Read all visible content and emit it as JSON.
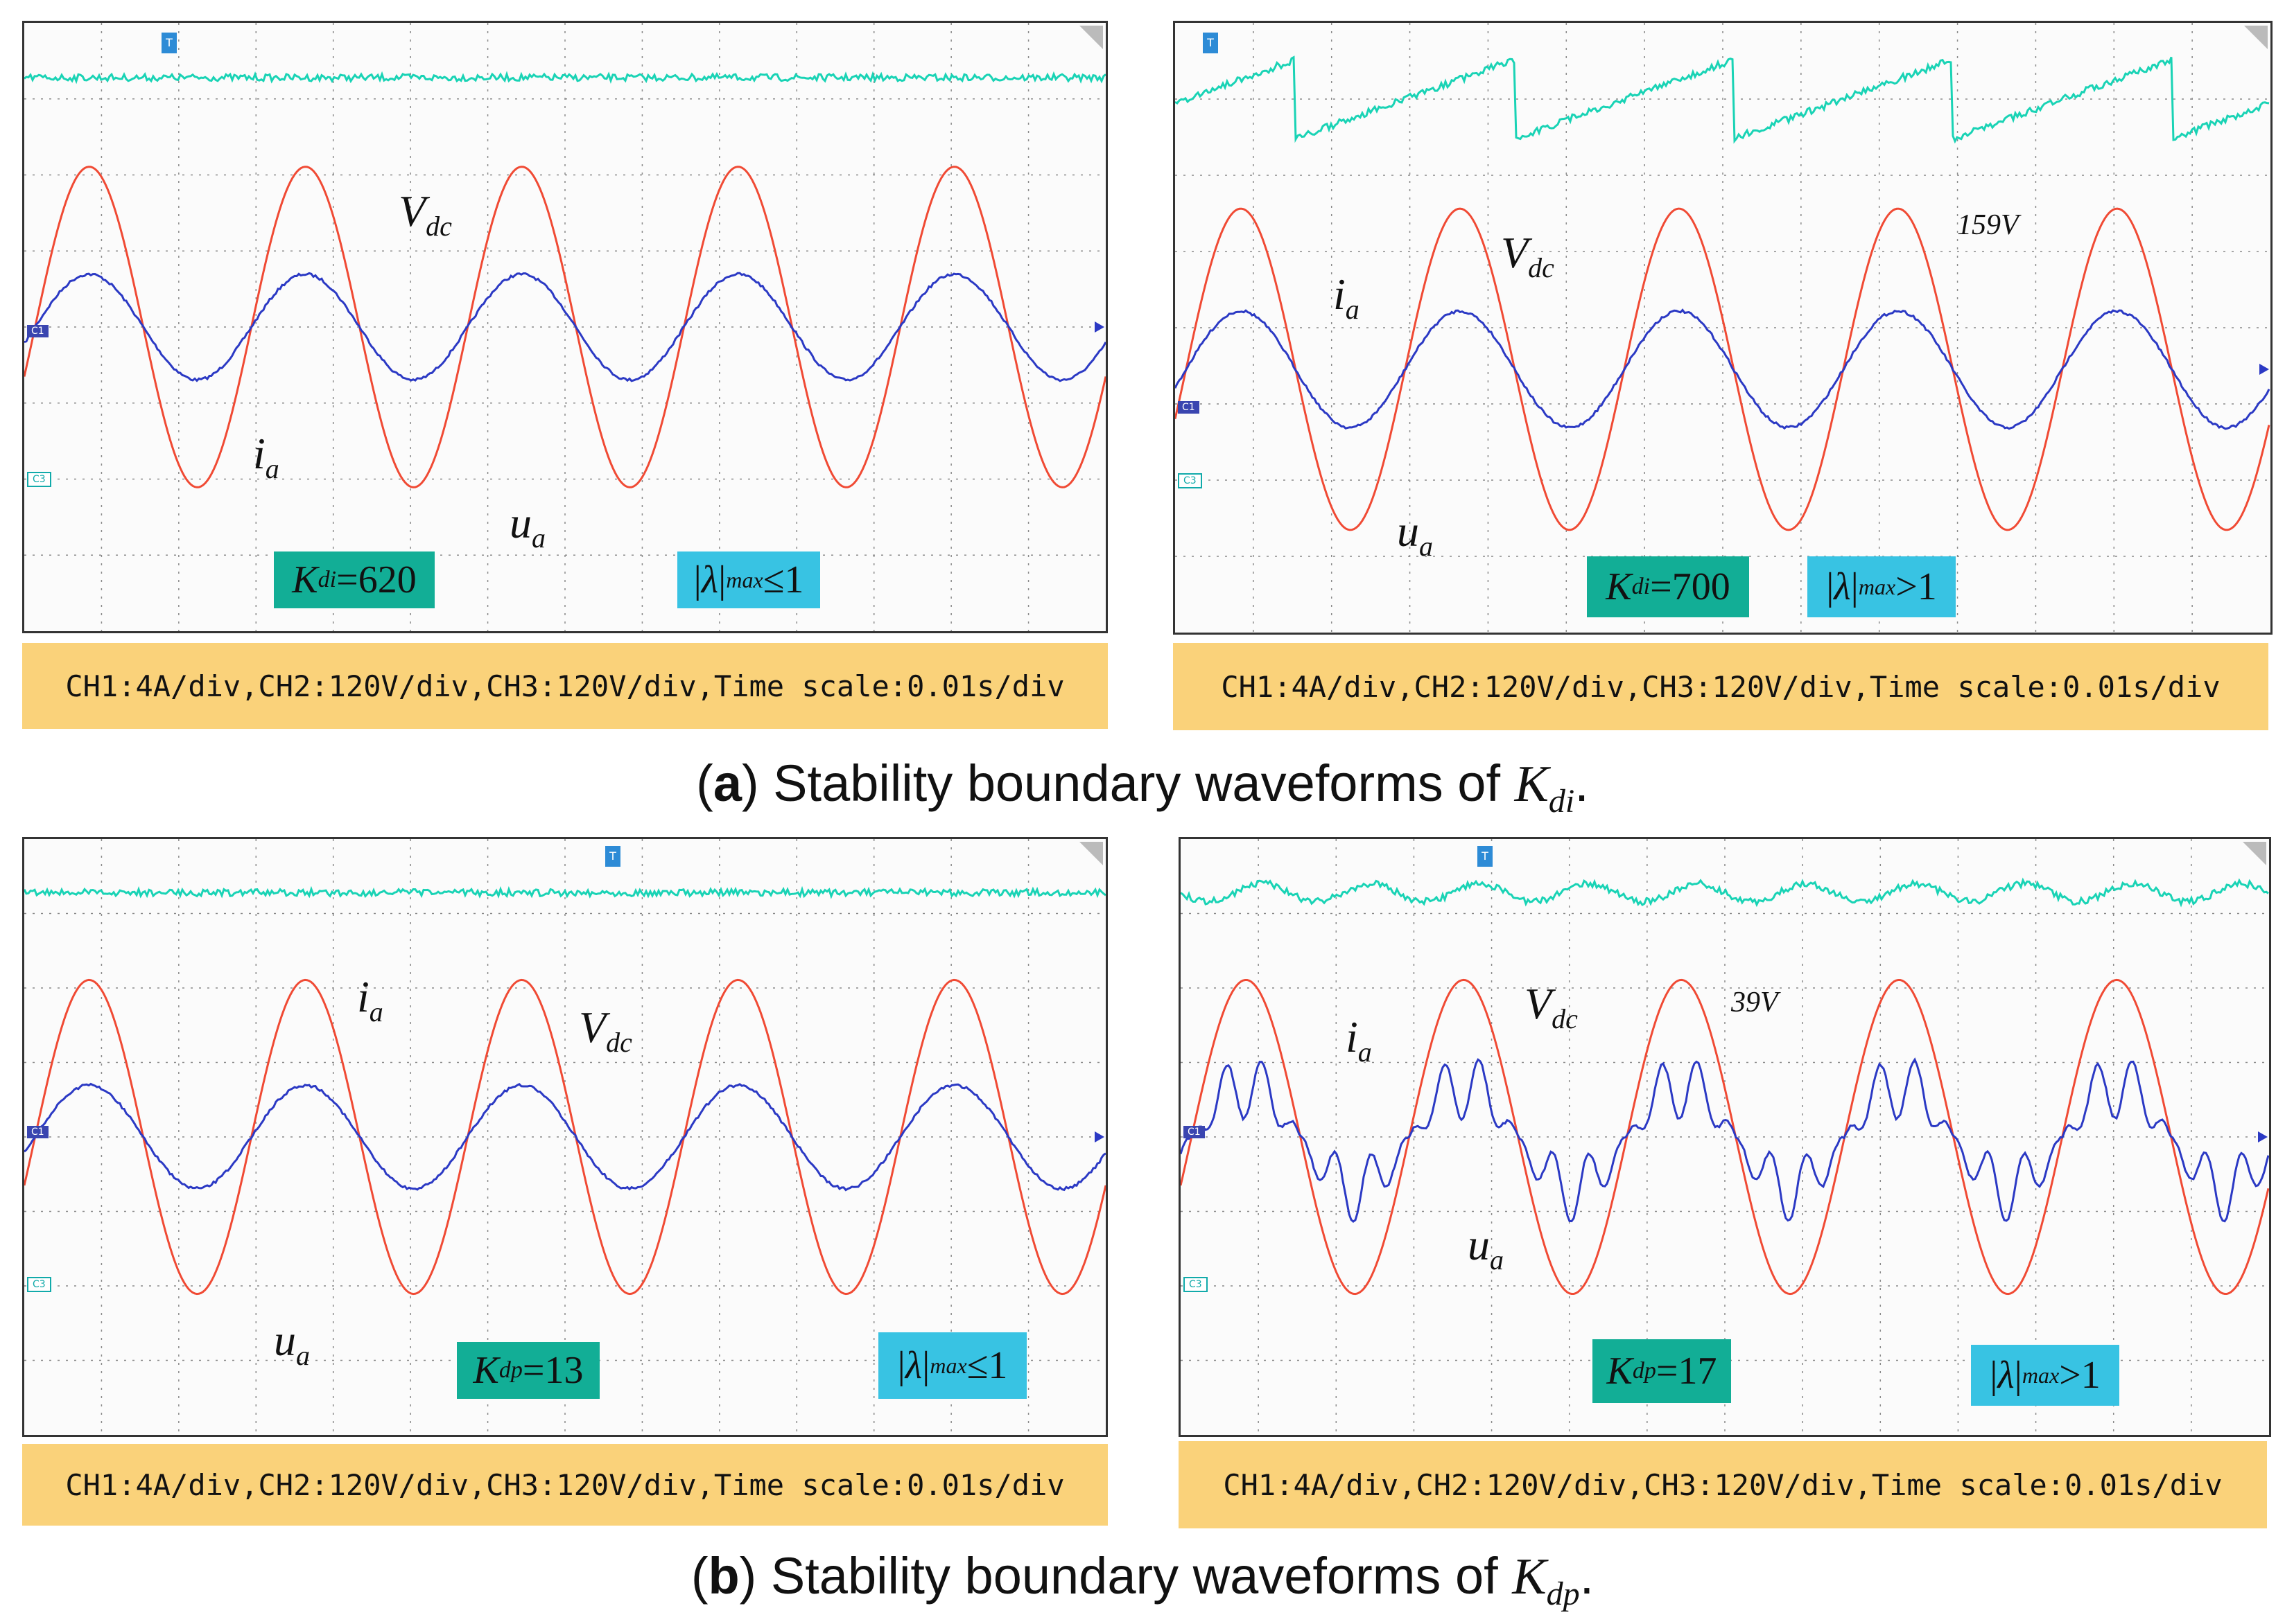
{
  "figure": {
    "caption_a": {
      "label": "a",
      "text": "Stability boundary waveforms of ",
      "sym": "K",
      "sub": "di"
    },
    "caption_b": {
      "label": "b",
      "text": "Stability boundary waveforms of ",
      "sym": "K",
      "sub": "dp"
    }
  },
  "colors": {
    "vdc": "#19d3b5",
    "ia": "#2b39c4",
    "ua": "#f04a34",
    "grid": "#8a8a8a"
  },
  "panels": [
    {
      "id": "a-left",
      "scale_text": "CH1:4A/div,CH2:120V/div,CH3:120V/div,Time scale:0.01s/div",
      "param": {
        "sym": "K",
        "sub": "di",
        "rel": " = ",
        "val": "620"
      },
      "lambda": {
        "sub": "max",
        "rel": " ≤1"
      },
      "labels": {
        "vdc_sym": "V",
        "vdc_sub": "dc",
        "ia_sym": "i",
        "ia_sub": "a",
        "ua_sym": "u",
        "ua_sub": "a"
      },
      "annotation": "",
      "tags": {
        "c1": "C1",
        "c3": "C3"
      },
      "waves": {
        "ua_amp": 0.85,
        "ia_amp": 0.2,
        "cycles": 5,
        "vdc_mode": "flat",
        "ia_ripple": 0
      }
    },
    {
      "id": "a-right",
      "scale_text": "CH1:4A/div,CH2:120V/div,CH3:120V/div,Time scale:0.01s/div",
      "param": {
        "sym": "K",
        "sub": "di",
        "rel": " = ",
        "val": "700"
      },
      "lambda": {
        "sub": "max",
        "rel": " >1"
      },
      "labels": {
        "vdc_sym": "V",
        "vdc_sub": "dc",
        "ia_sym": "i",
        "ia_sub": "a",
        "ua_sym": "u",
        "ua_sub": "a"
      },
      "annotation": "159V",
      "tags": {
        "c1": "C1",
        "c3": "C3"
      },
      "waves": {
        "ua_amp": 0.85,
        "ia_amp": 0.22,
        "cycles": 5,
        "vdc_mode": "sawtooth",
        "ia_ripple": 0
      }
    },
    {
      "id": "b-left",
      "scale_text": "CH1:4A/div,CH2:120V/div,CH3:120V/div,Time scale:0.01s/div",
      "param": {
        "sym": "K",
        "sub": "dp",
        "rel": " =",
        "val": "13"
      },
      "lambda": {
        "sub": "max",
        "rel": " ≤1"
      },
      "labels": {
        "vdc_sym": "V",
        "vdc_sub": "dc",
        "ia_sym": "i",
        "ia_sub": "a",
        "ua_sym": "u",
        "ua_sub": "a"
      },
      "annotation": "",
      "tags": {
        "c1": "C1",
        "c3": "C3"
      },
      "waves": {
        "ua_amp": 0.85,
        "ia_amp": 0.2,
        "cycles": 5,
        "vdc_mode": "flat",
        "ia_ripple": 0
      }
    },
    {
      "id": "b-right",
      "scale_text": "CH1:4A/div,CH2:120V/div,CH3:120V/div,Time scale:0.01s/div",
      "param": {
        "sym": "K",
        "sub": "dp",
        "rel": "=",
        "val": "17"
      },
      "lambda": {
        "sub": "max",
        "rel": " >1"
      },
      "labels": {
        "vdc_sym": "V",
        "vdc_sub": "dc",
        "ia_sym": "i",
        "ia_sub": "a",
        "ua_sym": "u",
        "ua_sub": "a"
      },
      "annotation": "39V",
      "tags": {
        "c1": "C1",
        "c3": "C3"
      },
      "waves": {
        "ua_amp": 0.85,
        "ia_amp": 0.2,
        "cycles": 5,
        "vdc_mode": "wavy",
        "ia_ripple": 1
      }
    }
  ]
}
